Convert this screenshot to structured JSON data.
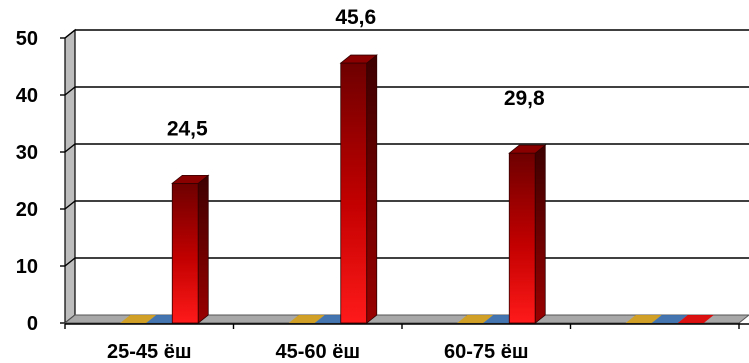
{
  "chart_data": {
    "type": "bar",
    "title": "",
    "xlabel": "",
    "ylabel": "",
    "categories": [
      "25-45 ёш",
      "45-60 ёш",
      "60-75 ёш",
      ""
    ],
    "series": [
      {
        "values": [
          0,
          0,
          0,
          0
        ],
        "color": "#D4A017"
      },
      {
        "values": [
          0,
          0,
          0,
          0
        ],
        "color": "#3A6FB0"
      },
      {
        "values": [
          24.5,
          45.6,
          29.8,
          0
        ],
        "color": "#E00000"
      }
    ],
    "data_labels": [
      "24,5",
      "45,6",
      "29,8"
    ],
    "y_ticks": [
      "0",
      "10",
      "20",
      "30",
      "40",
      "50"
    ],
    "ylim": [
      0,
      50
    ],
    "grid": true,
    "legend": "none"
  }
}
